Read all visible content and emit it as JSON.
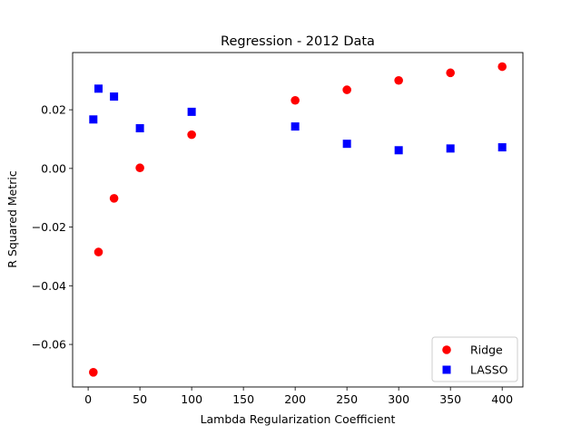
{
  "chart_data": {
    "type": "scatter",
    "title": "Regression - 2012 Data",
    "xlabel": "Lambda Regularization Coefficient",
    "ylabel": "R Squared Metric",
    "xlim": [
      -15,
      420
    ],
    "ylim": [
      -0.0745,
      0.0395
    ],
    "xticks": [
      0,
      50,
      100,
      150,
      200,
      250,
      300,
      350,
      400
    ],
    "xtick_labels": [
      "0",
      "50",
      "100",
      "150",
      "200",
      "250",
      "300",
      "350",
      "400"
    ],
    "yticks": [
      -0.06,
      -0.04,
      -0.02,
      0.0,
      0.02
    ],
    "ytick_labels": [
      "−0.06",
      "−0.04",
      "−0.02",
      "0.00",
      "0.02"
    ],
    "grid": false,
    "legend": "bottom-right",
    "series": [
      {
        "name": "Ridge",
        "marker": "circle",
        "color": "#ff0000",
        "x": [
          5,
          10,
          25,
          50,
          100,
          200,
          250,
          300,
          350,
          400
        ],
        "y": [
          -0.0695,
          -0.0285,
          -0.0102,
          0.0002,
          0.0115,
          0.0232,
          0.0268,
          0.03,
          0.0326,
          0.0347
        ]
      },
      {
        "name": "LASSO",
        "marker": "square",
        "color": "#0000ff",
        "x": [
          5,
          10,
          25,
          50,
          100,
          200,
          250,
          300,
          350,
          400
        ],
        "y": [
          0.0167,
          0.0272,
          0.0245,
          0.0137,
          0.0193,
          0.0143,
          0.0084,
          0.0062,
          0.0068,
          0.0072
        ]
      }
    ]
  }
}
